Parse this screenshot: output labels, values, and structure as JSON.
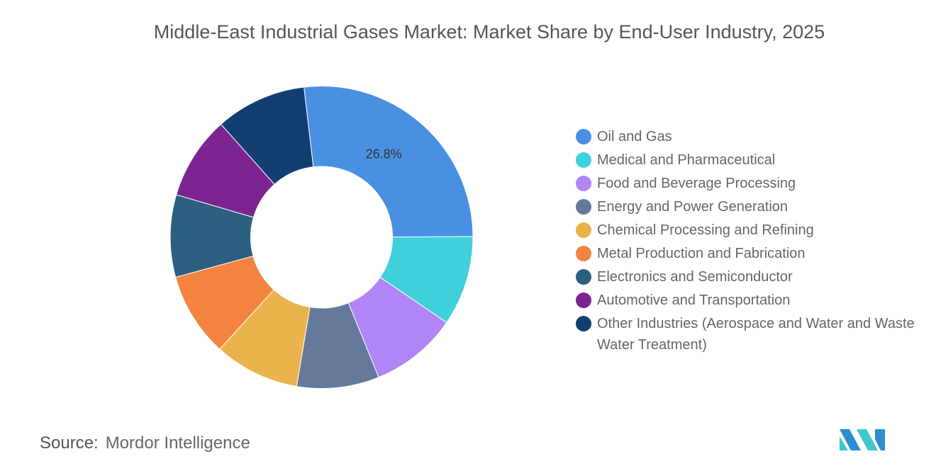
{
  "chart_data": {
    "type": "pie",
    "title": "Middle-East Industrial Gases Market: Market Share by End-User Industry, 2025",
    "donut": true,
    "legend_position": "right",
    "categories": [
      "Oil and Gas",
      "Medical and Pharmaceutical",
      "Food and Beverage Processing",
      "Energy and Power Generation",
      "Chemical Processing and Refining",
      "Metal Production and Fabrication",
      "Electronics and Semiconductor",
      "Automotive and Transportation",
      "Other Industries (Aerospace and Water and Waste Water Treatment)"
    ],
    "values": [
      26.8,
      9.6,
      9.3,
      8.8,
      9.1,
      9.0,
      8.8,
      8.9,
      9.7
    ],
    "colors": [
      "#4A90E2",
      "#40D0DB",
      "#B085F5",
      "#65799B",
      "#EBB34B",
      "#F2843F",
      "#2D5F80",
      "#7B2491",
      "#133E73"
    ],
    "data_labels": [
      "26.8%",
      "",
      "",
      "",
      "",
      "",
      "",
      "",
      ""
    ]
  },
  "source": {
    "label": "Source:",
    "value": "Mordor Intelligence"
  },
  "logo": "mordor-intelligence-logo"
}
